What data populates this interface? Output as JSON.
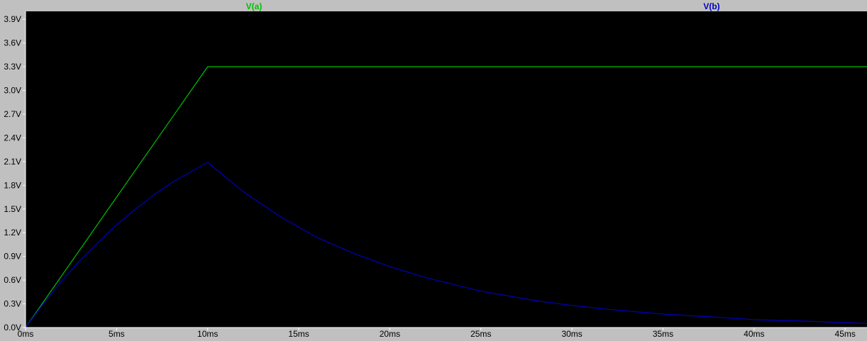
{
  "chart_data": {
    "type": "line",
    "title": "",
    "xlabel": "",
    "ylabel": "",
    "xlim": [
      0,
      46.2
    ],
    "ylim": [
      0,
      4.0
    ],
    "grid": false,
    "legend": "top",
    "x_ticks": [
      {
        "value": 0,
        "label": "0ms"
      },
      {
        "value": 5,
        "label": "5ms"
      },
      {
        "value": 10,
        "label": "10ms"
      },
      {
        "value": 15,
        "label": "15ms"
      },
      {
        "value": 20,
        "label": "20ms"
      },
      {
        "value": 25,
        "label": "25ms"
      },
      {
        "value": 30,
        "label": "30ms"
      },
      {
        "value": 35,
        "label": "35ms"
      },
      {
        "value": 40,
        "label": "40ms"
      },
      {
        "value": 45,
        "label": "45ms"
      }
    ],
    "y_ticks": [
      {
        "value": 0.0,
        "label": "0.0V"
      },
      {
        "value": 0.3,
        "label": "0.3V"
      },
      {
        "value": 0.6,
        "label": "0.6V"
      },
      {
        "value": 0.9,
        "label": "0.9V"
      },
      {
        "value": 1.2,
        "label": "1.2V"
      },
      {
        "value": 1.5,
        "label": "1.5V"
      },
      {
        "value": 1.8,
        "label": "1.8V"
      },
      {
        "value": 2.1,
        "label": "2.1V"
      },
      {
        "value": 2.4,
        "label": "2.4V"
      },
      {
        "value": 2.7,
        "label": "2.7V"
      },
      {
        "value": 3.0,
        "label": "3.0V"
      },
      {
        "value": 3.3,
        "label": "3.3V"
      },
      {
        "value": 3.6,
        "label": "3.6V"
      },
      {
        "value": 3.9,
        "label": "3.9V"
      }
    ],
    "series": [
      {
        "name": "V(a)",
        "color": "#00c000",
        "x": [
          0,
          10,
          46.2
        ],
        "y": [
          0,
          3.3,
          3.3
        ]
      },
      {
        "name": "V(b)",
        "color": "#0000c0",
        "x": [
          0,
          1,
          2,
          3,
          4,
          5,
          6,
          7,
          8,
          9,
          10,
          12,
          14,
          16,
          18,
          20,
          22,
          25,
          28,
          30,
          32,
          35,
          38,
          40,
          43,
          46.2
        ],
        "y": [
          0,
          0.31,
          0.59,
          0.85,
          1.08,
          1.3,
          1.49,
          1.67,
          1.83,
          1.96,
          2.09,
          1.71,
          1.4,
          1.14,
          0.94,
          0.77,
          0.63,
          0.46,
          0.34,
          0.28,
          0.23,
          0.17,
          0.13,
          0.1,
          0.08,
          0.05
        ]
      }
    ]
  }
}
